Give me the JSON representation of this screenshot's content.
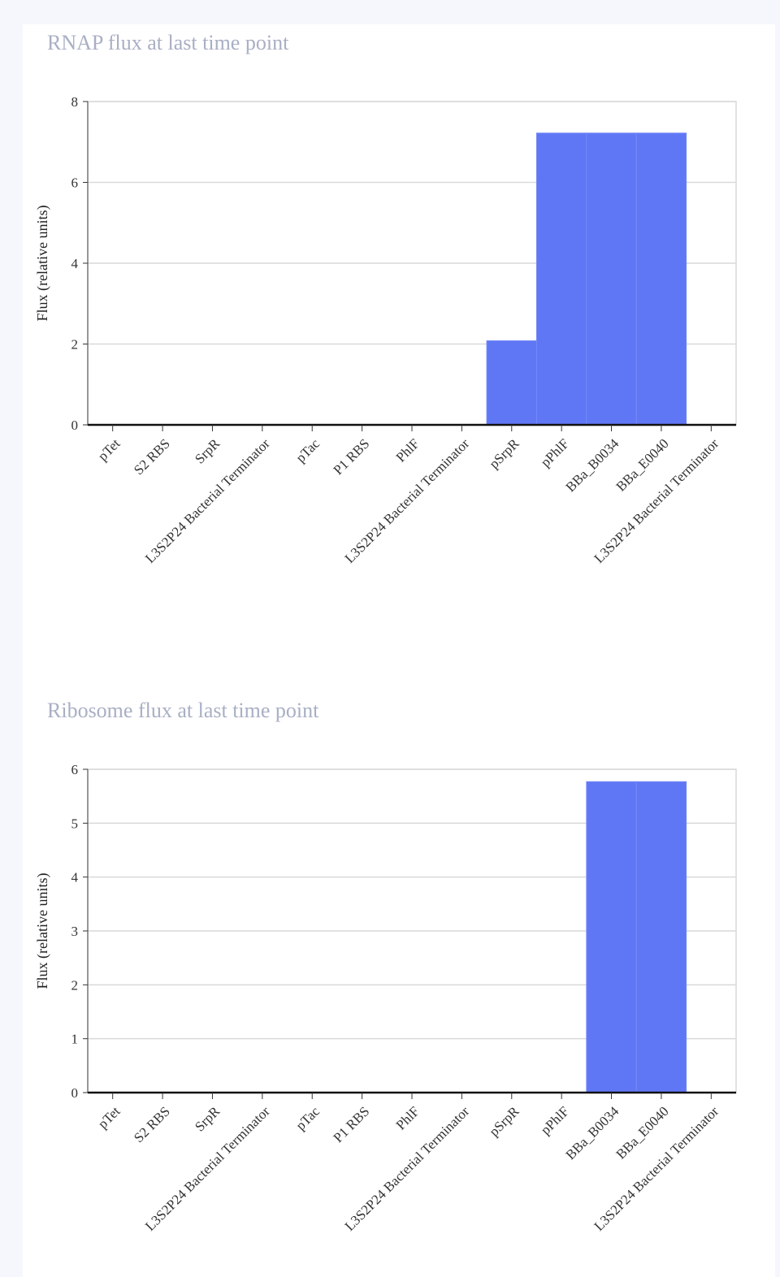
{
  "colors": {
    "bar": "#6077f5",
    "grid": "#d9d9d9",
    "page_bg": "#f6f7fc"
  },
  "chart_data": [
    {
      "type": "bar",
      "title": "RNAP flux at last time point",
      "xlabel": "",
      "ylabel": "Flux (relative units)",
      "ylim": [
        0,
        8
      ],
      "yticks": [
        0,
        2,
        4,
        6,
        8
      ],
      "grid": true,
      "categories": [
        "pTet",
        "S2 RBS",
        "SrpR",
        "L3S2P24 Bacterial Terminator",
        "pTac",
        "P1 RBS",
        "PhlF",
        "L3S2P24 Bacterial Terminator",
        "pSrpR",
        "pPhlF",
        "BBa_B0034",
        "BBa_E0040",
        "L3S2P24 Bacterial Terminator"
      ],
      "values": [
        0,
        0,
        0,
        0,
        0,
        0,
        0,
        0,
        2.08,
        7.22,
        7.22,
        7.22,
        0
      ]
    },
    {
      "type": "bar",
      "title": "Ribosome flux at last time point",
      "xlabel": "",
      "ylabel": "Flux (relative units)",
      "ylim": [
        0,
        6
      ],
      "yticks": [
        0,
        1,
        2,
        3,
        4,
        5,
        6
      ],
      "grid": true,
      "categories": [
        "pTet",
        "S2 RBS",
        "SrpR",
        "L3S2P24 Bacterial Terminator",
        "pTac",
        "P1 RBS",
        "PhlF",
        "L3S2P24 Bacterial Terminator",
        "pSrpR",
        "pPhlF",
        "BBa_B0034",
        "BBa_E0040",
        "L3S2P24 Bacterial Terminator"
      ],
      "values": [
        0,
        0,
        0,
        0,
        0,
        0,
        0,
        0,
        0,
        0,
        5.77,
        5.77,
        0
      ]
    }
  ]
}
